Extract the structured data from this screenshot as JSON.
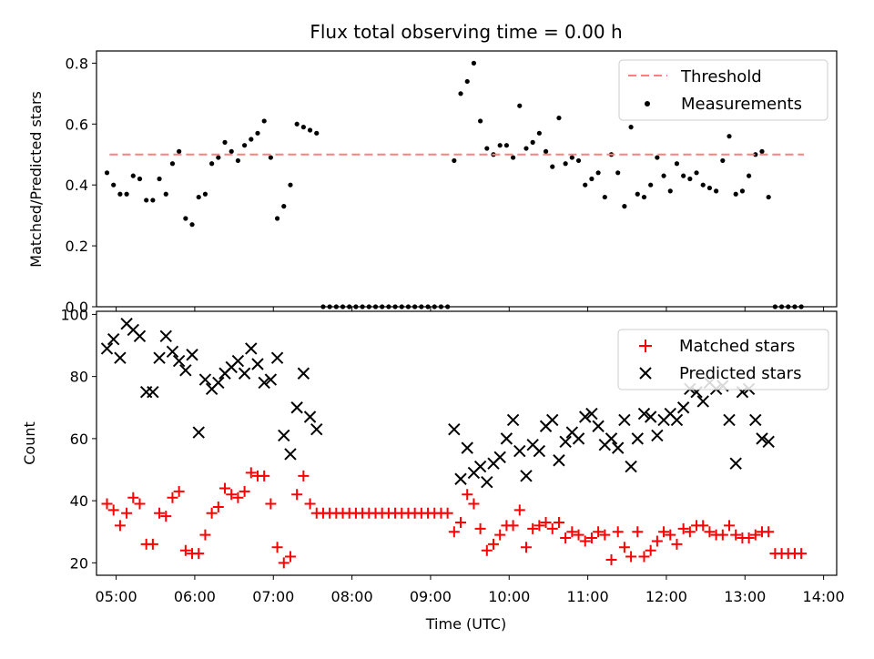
{
  "chart_data": [
    {
      "type": "scatter",
      "title": "Flux total observing time = 0.00 h",
      "xlabel": "",
      "ylabel": "Matched/Predicted stars",
      "ylim": [
        0,
        0.84
      ],
      "xlim": [
        "04:45",
        "14:10"
      ],
      "yticks": [
        0.0,
        0.2,
        0.4,
        0.6,
        0.8
      ],
      "ytick_labels": [
        "0.0",
        "0.2",
        "0.4",
        "0.6",
        "0.8"
      ],
      "grid": false,
      "legend_position": "top-right",
      "threshold": {
        "name": "Threshold",
        "y": 0.5,
        "x_start": "04:55",
        "x_end": "13:45",
        "color": "#ff7f7f",
        "style": "dashed"
      },
      "series": [
        {
          "name": "Measurements",
          "color": "#000000",
          "marker": "dot",
          "x": [
            "04:53",
            "04:58",
            "05:03",
            "05:08",
            "05:13",
            "05:18",
            "05:23",
            "05:28",
            "05:33",
            "05:38",
            "05:43",
            "05:48",
            "05:53",
            "05:58",
            "06:03",
            "06:08",
            "06:13",
            "06:18",
            "06:23",
            "06:28",
            "06:33",
            "06:38",
            "06:43",
            "06:48",
            "06:53",
            "06:58",
            "07:03",
            "07:08",
            "07:13",
            "07:18",
            "07:23",
            "07:28",
            "07:33",
            "07:38",
            "07:43",
            "07:48",
            "07:53",
            "07:58",
            "08:03",
            "08:08",
            "08:13",
            "08:18",
            "08:23",
            "08:28",
            "08:33",
            "08:38",
            "08:43",
            "08:48",
            "08:53",
            "08:58",
            "09:03",
            "09:08",
            "09:13",
            "09:18",
            "09:23",
            "09:28",
            "09:33",
            "09:38",
            "09:43",
            "09:48",
            "09:53",
            "09:58",
            "10:03",
            "10:08",
            "10:13",
            "10:18",
            "10:23",
            "10:28",
            "10:33",
            "10:38",
            "10:43",
            "10:48",
            "10:53",
            "10:58",
            "11:03",
            "11:08",
            "11:13",
            "11:18",
            "11:23",
            "11:28",
            "11:33",
            "11:38",
            "11:43",
            "11:48",
            "11:53",
            "11:58",
            "12:03",
            "12:08",
            "12:13",
            "12:18",
            "12:23",
            "12:28",
            "12:33",
            "12:38",
            "12:43",
            "12:48",
            "12:53",
            "12:58",
            "13:03",
            "13:08",
            "13:13",
            "13:18",
            "13:23",
            "13:28",
            "13:33",
            "13:38",
            "13:43"
          ],
          "y": [
            0.44,
            0.4,
            0.37,
            0.37,
            0.43,
            0.42,
            0.35,
            0.35,
            0.42,
            0.37,
            0.47,
            0.51,
            0.29,
            0.27,
            0.36,
            0.37,
            0.47,
            0.49,
            0.54,
            0.51,
            0.48,
            0.53,
            0.55,
            0.57,
            0.61,
            0.49,
            0.29,
            0.33,
            0.4,
            0.6,
            0.59,
            0.58,
            0.57,
            0.0,
            0.0,
            0.0,
            0.0,
            0.0,
            0.0,
            0.0,
            0.0,
            0.0,
            0.0,
            0.0,
            0.0,
            0.0,
            0.0,
            0.0,
            0.0,
            0.0,
            0.0,
            0.0,
            0.0,
            0.48,
            0.7,
            0.74,
            0.8,
            0.61,
            0.52,
            0.5,
            0.53,
            0.53,
            0.49,
            0.66,
            0.52,
            0.54,
            0.57,
            0.51,
            0.46,
            0.62,
            0.47,
            0.49,
            0.48,
            0.4,
            0.42,
            0.44,
            0.36,
            0.5,
            0.44,
            0.33,
            0.59,
            0.37,
            0.36,
            0.4,
            0.49,
            0.43,
            0.38,
            0.47,
            0.43,
            0.42,
            0.44,
            0.4,
            0.39,
            0.38,
            0.48,
            0.56,
            0.37,
            0.38,
            0.43,
            0.5,
            0.51,
            0.36,
            0.0,
            0.0,
            0.0,
            0.0,
            0.0
          ]
        }
      ]
    },
    {
      "type": "scatter",
      "title": "",
      "xlabel": "Time (UTC)",
      "ylabel": "Count",
      "ylim": [
        16,
        101
      ],
      "xlim": [
        "04:45",
        "14:10"
      ],
      "yticks": [
        20,
        40,
        60,
        80,
        100
      ],
      "ytick_labels": [
        "20",
        "40",
        "60",
        "80",
        "100"
      ],
      "xticks": [
        "05:00",
        "06:00",
        "07:00",
        "08:00",
        "09:00",
        "10:00",
        "11:00",
        "12:00",
        "13:00",
        "14:00"
      ],
      "grid": false,
      "legend_position": "top-right",
      "series": [
        {
          "name": "Matched stars",
          "color": "#ff0000",
          "marker": "plus",
          "x": [
            "04:53",
            "04:58",
            "05:03",
            "05:08",
            "05:13",
            "05:18",
            "05:23",
            "05:28",
            "05:33",
            "05:38",
            "05:43",
            "05:48",
            "05:53",
            "05:58",
            "06:03",
            "06:08",
            "06:13",
            "06:18",
            "06:23",
            "06:28",
            "06:33",
            "06:38",
            "06:43",
            "06:48",
            "06:53",
            "06:58",
            "07:03",
            "07:08",
            "07:13",
            "07:18",
            "07:23",
            "07:28",
            "07:33",
            "07:38",
            "07:43",
            "07:48",
            "07:53",
            "07:58",
            "08:03",
            "08:08",
            "08:13",
            "08:18",
            "08:23",
            "08:28",
            "08:33",
            "08:38",
            "08:43",
            "08:48",
            "08:53",
            "08:58",
            "09:03",
            "09:08",
            "09:13",
            "09:18",
            "09:23",
            "09:28",
            "09:33",
            "09:38",
            "09:43",
            "09:48",
            "09:53",
            "09:58",
            "10:03",
            "10:08",
            "10:13",
            "10:18",
            "10:23",
            "10:28",
            "10:33",
            "10:38",
            "10:43",
            "10:48",
            "10:53",
            "10:58",
            "11:03",
            "11:08",
            "11:13",
            "11:18",
            "11:23",
            "11:28",
            "11:33",
            "11:38",
            "11:43",
            "11:48",
            "11:53",
            "11:58",
            "12:03",
            "12:08",
            "12:13",
            "12:18",
            "12:23",
            "12:28",
            "12:33",
            "12:38",
            "12:43",
            "12:48",
            "12:53",
            "12:58",
            "13:03",
            "13:08",
            "13:13",
            "13:18",
            "13:23",
            "13:28",
            "13:33",
            "13:38",
            "13:43"
          ],
          "y": [
            39,
            37,
            32,
            36,
            41,
            39,
            26,
            26,
            36,
            35,
            41,
            43,
            24,
            23,
            23,
            29,
            36,
            38,
            44,
            42,
            41,
            43,
            49,
            48,
            48,
            39,
            25,
            20,
            22,
            42,
            48,
            39,
            36,
            36,
            36,
            36,
            36,
            36,
            36,
            36,
            36,
            36,
            36,
            36,
            36,
            36,
            36,
            36,
            36,
            36,
            36,
            36,
            36,
            30,
            33,
            42,
            39,
            31,
            24,
            26,
            29,
            32,
            32,
            37,
            25,
            31,
            32,
            33,
            31,
            33,
            28,
            30,
            29,
            27,
            28,
            30,
            29,
            21,
            30,
            25,
            22,
            30,
            22,
            24,
            27,
            30,
            29,
            26,
            31,
            30,
            32,
            32,
            30,
            29,
            29,
            32,
            29,
            28,
            28,
            29,
            30,
            30,
            23,
            23,
            23,
            23,
            23
          ]
        },
        {
          "name": "Predicted stars",
          "color": "#000000",
          "marker": "x",
          "x": [
            "04:53",
            "04:58",
            "05:03",
            "05:08",
            "05:13",
            "05:18",
            "05:23",
            "05:28",
            "05:33",
            "05:38",
            "05:43",
            "05:48",
            "05:53",
            "05:58",
            "06:03",
            "06:08",
            "06:13",
            "06:18",
            "06:23",
            "06:28",
            "06:33",
            "06:38",
            "06:43",
            "06:48",
            "06:53",
            "06:58",
            "07:03",
            "07:08",
            "07:13",
            "07:18",
            "07:23",
            "07:28",
            "07:33",
            "09:18",
            "09:23",
            "09:28",
            "09:33",
            "09:38",
            "09:43",
            "09:48",
            "09:53",
            "09:58",
            "10:03",
            "10:08",
            "10:13",
            "10:18",
            "10:23",
            "10:28",
            "10:33",
            "10:38",
            "10:43",
            "10:48",
            "10:53",
            "10:58",
            "11:03",
            "11:08",
            "11:13",
            "11:18",
            "11:23",
            "11:28",
            "11:33",
            "11:38",
            "11:43",
            "11:48",
            "11:53",
            "11:58",
            "12:03",
            "12:08",
            "12:13",
            "12:18",
            "12:23",
            "12:28",
            "12:33",
            "12:38",
            "12:43",
            "12:48",
            "12:53",
            "12:58",
            "13:03",
            "13:08",
            "13:13",
            "13:18"
          ],
          "y": [
            89,
            92,
            86,
            97,
            95,
            93,
            75,
            75,
            86,
            93,
            88,
            85,
            82,
            87,
            62,
            79,
            76,
            78,
            81,
            83,
            85,
            81,
            89,
            84,
            78,
            79,
            86,
            61,
            55,
            70,
            81,
            67,
            63,
            63,
            47,
            57,
            49,
            51,
            46,
            52,
            54,
            60,
            66,
            56,
            48,
            58,
            56,
            64,
            66,
            53,
            59,
            62,
            60,
            67,
            68,
            64,
            58,
            60,
            57,
            66,
            51,
            60,
            68,
            67,
            61,
            66,
            68,
            66,
            70,
            76,
            75,
            72,
            78,
            76,
            77,
            66,
            52,
            75,
            76,
            66,
            60,
            59
          ]
        }
      ]
    }
  ],
  "legend_top": {
    "threshold_label": "Threshold",
    "measurements_label": "Measurements"
  },
  "legend_bottom": {
    "matched_label": "Matched stars",
    "predicted_label": "Predicted stars"
  }
}
